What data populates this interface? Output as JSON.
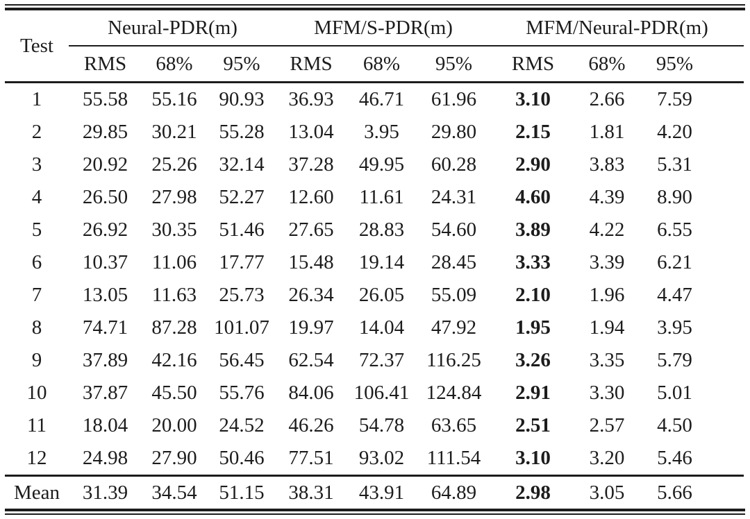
{
  "chart_data": {
    "type": "table",
    "corner_header": "Test",
    "column_groups": [
      {
        "label": "Neural-PDR(m)"
      },
      {
        "label": "MFM/S-PDR(m)"
      },
      {
        "label": "MFM/Neural-PDR(m)"
      }
    ],
    "sub_headers": [
      "RMS",
      "68%",
      "95%"
    ],
    "bold_column": "MFM/Neural-PDR(m) RMS",
    "rows": [
      {
        "test": "1",
        "values": [
          "55.58",
          "55.16",
          "90.93",
          "36.93",
          "46.71",
          "61.96",
          "3.10",
          "2.66",
          "7.59"
        ]
      },
      {
        "test": "2",
        "values": [
          "29.85",
          "30.21",
          "55.28",
          "13.04",
          "3.95",
          "29.80",
          "2.15",
          "1.81",
          "4.20"
        ]
      },
      {
        "test": "3",
        "values": [
          "20.92",
          "25.26",
          "32.14",
          "37.28",
          "49.95",
          "60.28",
          "2.90",
          "3.83",
          "5.31"
        ]
      },
      {
        "test": "4",
        "values": [
          "26.50",
          "27.98",
          "52.27",
          "12.60",
          "11.61",
          "24.31",
          "4.60",
          "4.39",
          "8.90"
        ]
      },
      {
        "test": "5",
        "values": [
          "26.92",
          "30.35",
          "51.46",
          "27.65",
          "28.83",
          "54.60",
          "3.89",
          "4.22",
          "6.55"
        ]
      },
      {
        "test": "6",
        "values": [
          "10.37",
          "11.06",
          "17.77",
          "15.48",
          "19.14",
          "28.45",
          "3.33",
          "3.39",
          "6.21"
        ]
      },
      {
        "test": "7",
        "values": [
          "13.05",
          "11.63",
          "25.73",
          "26.34",
          "26.05",
          "55.09",
          "2.10",
          "1.96",
          "4.47"
        ]
      },
      {
        "test": "8",
        "values": [
          "74.71",
          "87.28",
          "101.07",
          "19.97",
          "14.04",
          "47.92",
          "1.95",
          "1.94",
          "3.95"
        ]
      },
      {
        "test": "9",
        "values": [
          "37.89",
          "42.16",
          "56.45",
          "62.54",
          "72.37",
          "116.25",
          "3.26",
          "3.35",
          "5.79"
        ]
      },
      {
        "test": "10",
        "values": [
          "37.87",
          "45.50",
          "55.76",
          "84.06",
          "106.41",
          "124.84",
          "2.91",
          "3.30",
          "5.01"
        ]
      },
      {
        "test": "11",
        "values": [
          "18.04",
          "20.00",
          "24.52",
          "46.26",
          "54.78",
          "63.65",
          "2.51",
          "2.57",
          "4.50"
        ]
      },
      {
        "test": "12",
        "values": [
          "24.98",
          "27.90",
          "50.46",
          "77.51",
          "93.02",
          "111.54",
          "3.10",
          "3.20",
          "5.46"
        ]
      },
      {
        "test": "Mean",
        "values": [
          "31.39",
          "34.54",
          "51.15",
          "38.31",
          "43.91",
          "64.89",
          "2.98",
          "3.05",
          "5.66"
        ]
      }
    ],
    "colors": {
      "ink": "#1c1c1c",
      "background": "#ffffff"
    }
  }
}
